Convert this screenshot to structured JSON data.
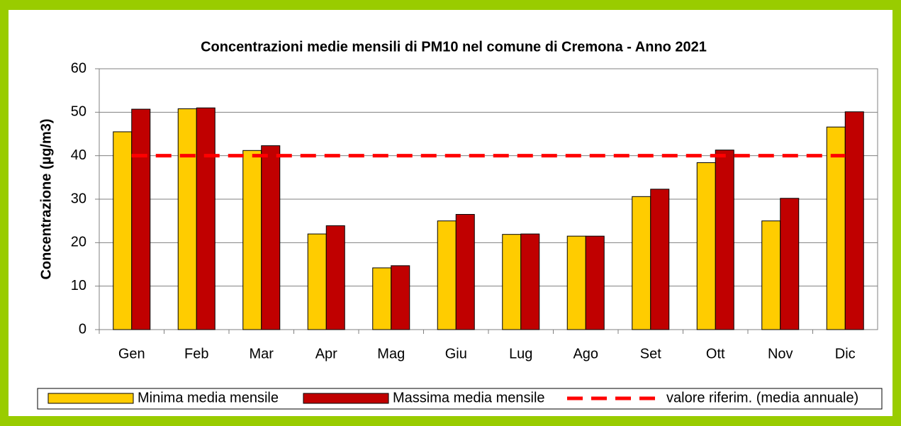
{
  "chart_data": {
    "type": "bar",
    "title": "Concentrazioni medie mensili di PM10 nel comune di Cremona - Anno 2021",
    "y_label": "Concentrazione (µg/m3)",
    "categories": [
      "Gen",
      "Feb",
      "Mar",
      "Apr",
      "Mag",
      "Giu",
      "Lug",
      "Ago",
      "Set",
      "Ott",
      "Nov",
      "Dic"
    ],
    "series": [
      {
        "name": "Minima media mensile",
        "color": "#ffcc00",
        "values": [
          45.5,
          50.8,
          41.2,
          22,
          14.2,
          25,
          21.9,
          21.5,
          30.6,
          38.4,
          25,
          46.6
        ]
      },
      {
        "name": "Massima media mensile",
        "color": "#c00000",
        "values": [
          50.7,
          51,
          42.3,
          23.9,
          14.7,
          26.5,
          22,
          21.5,
          32.3,
          41.3,
          30.2,
          50.1
        ]
      },
      {
        "name": "valore riferim. (media annuale)",
        "color": "#ff0000",
        "type": "line",
        "values": [
          40,
          40,
          40,
          40,
          40,
          40,
          40,
          40,
          40,
          40,
          40,
          40
        ]
      }
    ],
    "ylim": [
      0,
      60
    ],
    "yticks": [
      0,
      10,
      20,
      30,
      40,
      50,
      60
    ],
    "grid": true,
    "legend": "bottom"
  }
}
